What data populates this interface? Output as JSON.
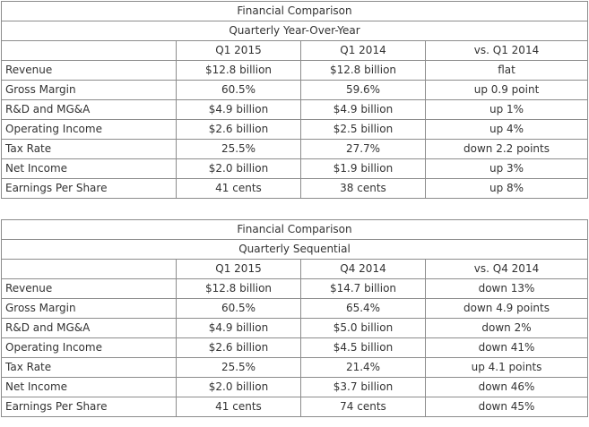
{
  "tables": [
    {
      "title": "Financial Comparison",
      "subtitle": "Quarterly Year-Over-Year",
      "headers": [
        "",
        "Q1 2015",
        "Q1 2014",
        "vs. Q1 2014"
      ],
      "rows": [
        [
          "Revenue",
          "$12.8 billion",
          "$12.8 billion",
          "flat"
        ],
        [
          "Gross Margin",
          "60.5%",
          "59.6%",
          "up 0.9 point"
        ],
        [
          "R&D and MG&A",
          "$4.9 billion",
          "$4.9 billion",
          "up 1%"
        ],
        [
          "Operating Income",
          "$2.6 billion",
          "$2.5 billion",
          "up 4%"
        ],
        [
          "Tax Rate",
          "25.5%",
          "27.7%",
          "down 2.2 points"
        ],
        [
          "Net Income",
          "$2.0 billion",
          "$1.9 billion",
          "up 3%"
        ],
        [
          "Earnings Per Share",
          "41 cents",
          "38 cents",
          "up 8%"
        ]
      ]
    },
    {
      "title": "Financial Comparison",
      "subtitle": "Quarterly Sequential",
      "headers": [
        "",
        "Q1 2015",
        "Q4 2014",
        "vs. Q4 2014"
      ],
      "rows": [
        [
          "Revenue",
          "$12.8 billion",
          "$14.7 billion",
          "down 13%"
        ],
        [
          "Gross Margin",
          "60.5%",
          "65.4%",
          "down 4.9 points"
        ],
        [
          "R&D and MG&A",
          "$4.9 billion",
          "$5.0 billion",
          "down 2%"
        ],
        [
          "Operating Income",
          "$2.6 billion",
          "$4.5 billion",
          "down 41%"
        ],
        [
          "Tax Rate",
          "25.5%",
          "21.4%",
          "up 4.1 points"
        ],
        [
          "Net Income",
          "$2.0 billion",
          "$3.7 billion",
          "down 46%"
        ],
        [
          "Earnings Per Share",
          "41 cents",
          "74 cents",
          "down 45%"
        ]
      ]
    }
  ]
}
